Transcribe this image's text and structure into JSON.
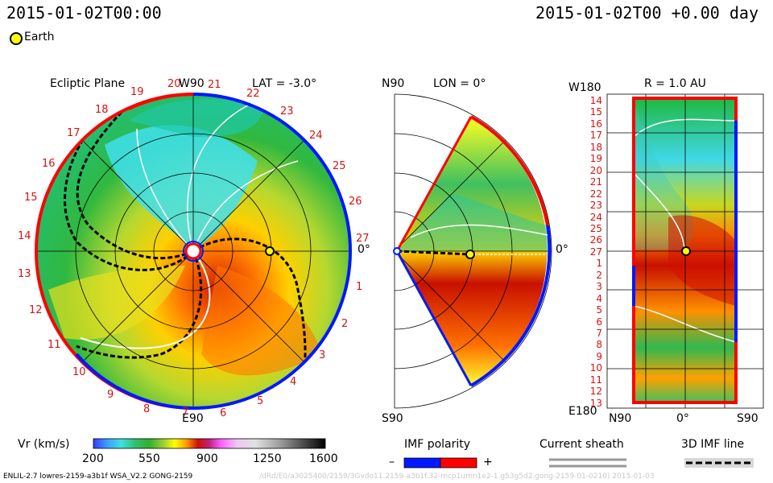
{
  "header": {
    "date_left": "2015-01-02T00:00",
    "date_right": "2015-01-02T00 +0.00 day",
    "earth_label": "Earth"
  },
  "panel_ecliptic": {
    "title": "Ecliptic Plane",
    "lat_label": "LAT = -3.0°",
    "top_label": "W90",
    "bottom_label": "E90",
    "right_label": "0°",
    "rotations": [
      "20",
      "21",
      "22",
      "23",
      "24",
      "25",
      "26",
      "27",
      "1",
      "2",
      "3",
      "4",
      "5",
      "6",
      "7",
      "8",
      "9",
      "10",
      "11",
      "12",
      "13",
      "14",
      "15",
      "16",
      "17",
      "18",
      "19"
    ]
  },
  "panel_meridional": {
    "lon_label": "LON = 0°",
    "top_label": "N90",
    "bottom_label": "S90",
    "right_label": "0°"
  },
  "panel_sphere": {
    "r_label": "R = 1.0 AU",
    "top_left_label": "W180",
    "bottom_left_label": "E180",
    "x_labels": [
      "N90",
      "0°",
      "S90"
    ],
    "y_labels": [
      "14",
      "15",
      "16",
      "17",
      "18",
      "19",
      "20",
      "21",
      "22",
      "23",
      "24",
      "25",
      "26",
      "27",
      "1",
      "2",
      "3",
      "4",
      "5",
      "6",
      "7",
      "8",
      "9",
      "10",
      "11",
      "12",
      "13"
    ]
  },
  "colorbar": {
    "title": "Vr (km/s)",
    "ticks": [
      "200",
      "550",
      "900",
      "1250",
      "1600"
    ],
    "colors": [
      "#3a3aff",
      "#3aa0ff",
      "#40e0e0",
      "#30c070",
      "#2fb02f",
      "#9acd32",
      "#ffff00",
      "#ff9f00",
      "#d01000",
      "#c02080",
      "#ff60ff",
      "#f0a0f0",
      "#c8c8c8",
      "#909090",
      "#404040",
      "#000000"
    ]
  },
  "legend": {
    "imf_title": "IMF polarity",
    "imf_minus": "–",
    "imf_plus": "+",
    "imf_neg_color": "#0018ff",
    "imf_pos_color": "#ff0000",
    "sheath_title": "Current sheath",
    "imf_line_title": "3D IMF line"
  },
  "footer": {
    "left": "ENLIL-2.7 lowres-2159-a3b1f WSA_V2.2 GONG-2159",
    "right": "/dRd/E0/a3025400/2159/3Gvdo11.2159-a3b1f.32-mcp1umn1e2-1.g53g5d2.gong-2159-01-0210) 2015-01-03"
  }
}
